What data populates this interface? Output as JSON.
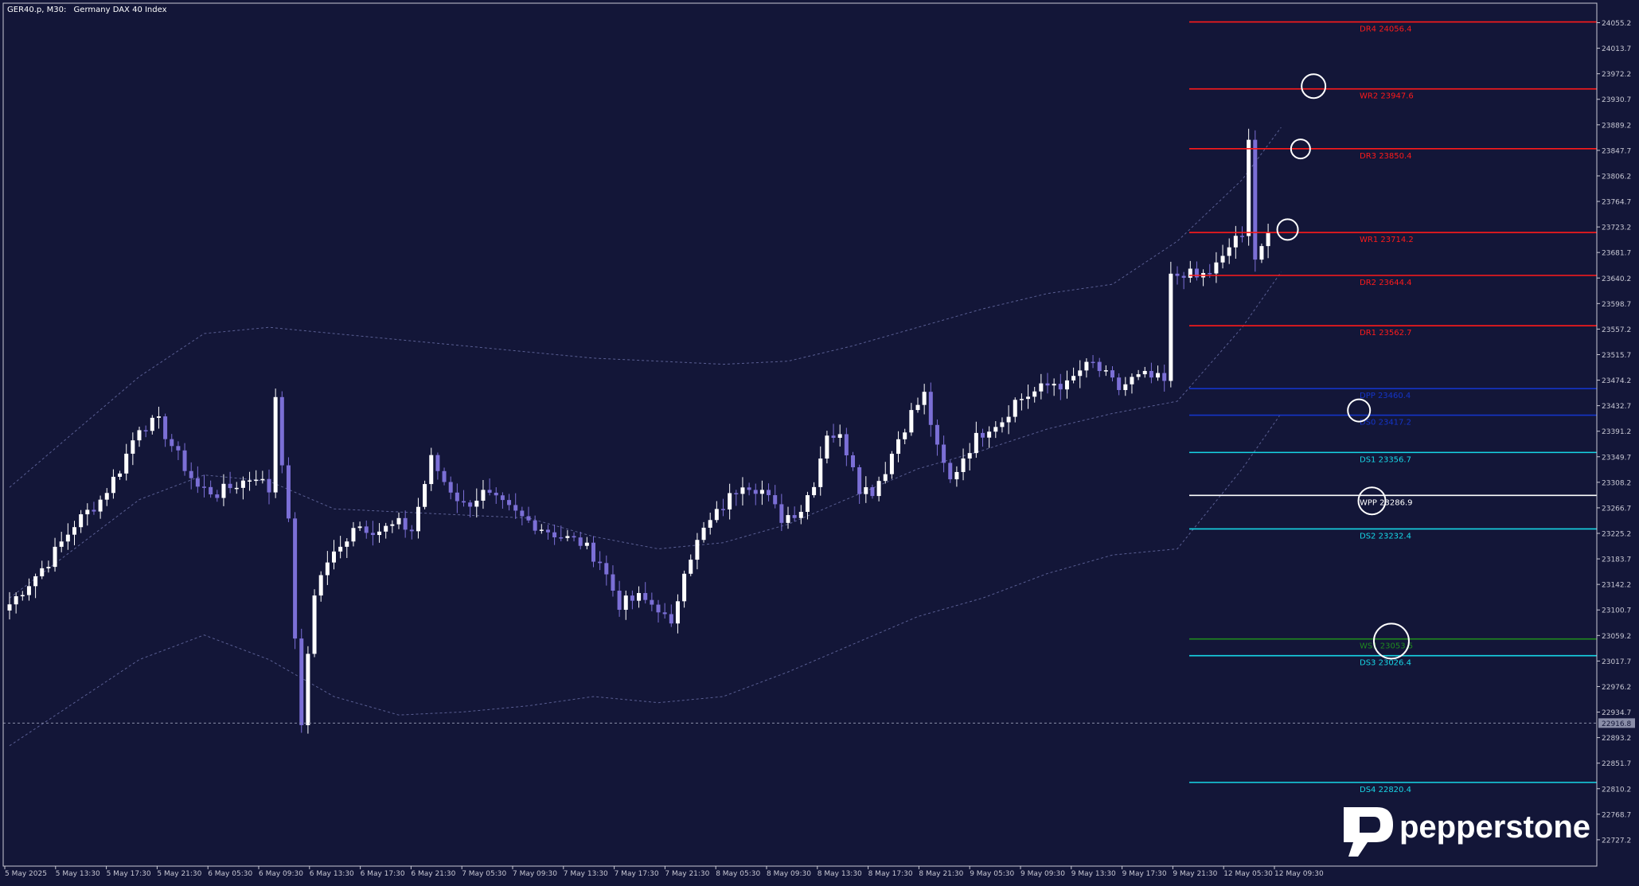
{
  "header": {
    "symbol": "GER40.p, M30:",
    "description": "Germany DAX 40 Index"
  },
  "logo": {
    "text": "pepperstone"
  },
  "colors": {
    "background": "#131638",
    "frame": "#c8c8d4",
    "bull_candle": "#ffffff",
    "bear_candle": "#7b6fd6",
    "band": "#5a5f93",
    "resistance": "#ff1a1a",
    "pivot": "#ffffff",
    "support": "#17d6e6",
    "weekly_support": "#1f8a1f",
    "dark_level": "#1434c8"
  },
  "chart_data": {
    "type": "candlestick",
    "title": "GER40.p, M30: Germany DAX 40 Index",
    "ylim": [
      22705,
      24085
    ],
    "y_ticks": [
      "24055.2",
      "24013.7",
      "23972.2",
      "23930.7",
      "23889.2",
      "23847.7",
      "23806.2",
      "23764.7",
      "23723.2",
      "23681.7",
      "23640.2",
      "23598.7",
      "23557.2",
      "23515.7",
      "23474.2",
      "23432.7",
      "23391.2",
      "23349.7",
      "23308.2",
      "23266.7",
      "23225.2",
      "23183.7",
      "23142.2",
      "23100.7",
      "23059.2",
      "23017.7",
      "22976.2",
      "22934.7",
      "22893.2",
      "22851.7",
      "22810.2",
      "22768.7",
      "22727.2"
    ],
    "x_ticks": [
      "5 May 2025",
      "5 May 13:30",
      "5 May 17:30",
      "5 May 21:30",
      "6 May 05:30",
      "6 May 09:30",
      "6 May 13:30",
      "6 May 17:30",
      "6 May 21:30",
      "7 May 05:30",
      "7 May 09:30",
      "7 May 13:30",
      "7 May 17:30",
      "7 May 21:30",
      "8 May 05:30",
      "8 May 09:30",
      "8 May 13:30",
      "8 May 17:30",
      "8 May 21:30",
      "9 May 05:30",
      "9 May 09:30",
      "9 May 13:30",
      "9 May 17:30",
      "9 May 21:30",
      "12 May 05:30",
      "12 May 09:30"
    ],
    "current_price": "22916.8",
    "levels": [
      {
        "label": "DR4 24056.4",
        "value": 24056.4,
        "role": "resistance"
      },
      {
        "label": "WR2 23947.6",
        "value": 23947.6,
        "role": "resistance"
      },
      {
        "label": "DR3 23850.4",
        "value": 23850.4,
        "role": "resistance"
      },
      {
        "label": "WR1 23714.2",
        "value": 23714.2,
        "role": "resistance"
      },
      {
        "label": "DR2 23644.4",
        "value": 23644.4,
        "role": "resistance"
      },
      {
        "label": "DR1 23562.7",
        "value": 23562.7,
        "role": "resistance"
      },
      {
        "label": "DPP 23460.4",
        "value": 23460.4,
        "role": "dark"
      },
      {
        "label": "DS0 23417.2",
        "value": 23417.2,
        "role": "dark"
      },
      {
        "label": "DS1 23356.7",
        "value": 23356.7,
        "role": "support"
      },
      {
        "label": "WPP 23286.9",
        "value": 23286.9,
        "role": "pivot"
      },
      {
        "label": "DS2 23232.4",
        "value": 23232.4,
        "role": "support"
      },
      {
        "label": "WS1 23053.5",
        "value": 23053.5,
        "role": "weekly_support"
      },
      {
        "label": "DS3 23026.4",
        "value": 23026.4,
        "role": "support"
      },
      {
        "label": "DS4 22820.4",
        "value": 22820.4,
        "role": "support"
      }
    ],
    "markers": [
      {
        "x_index": 189,
        "value": 23952
      },
      {
        "x_index": 187,
        "value": 23850
      },
      {
        "x_index": 185,
        "value": 23719
      },
      {
        "x_index": 196,
        "value": 23425
      },
      {
        "x_index": 198,
        "value": 23278
      },
      {
        "x_index": 201,
        "value": 23050
      }
    ],
    "series": [
      {
        "name": "",
        "anchors": [
          [
            0,
            23110
          ],
          [
            6,
            23180
          ],
          [
            10,
            23240
          ],
          [
            14,
            23280
          ],
          [
            17,
            23330
          ],
          [
            20,
            23400
          ],
          [
            23,
            23405
          ],
          [
            26,
            23350
          ],
          [
            29,
            23300
          ],
          [
            32,
            23290
          ],
          [
            35,
            23305
          ],
          [
            38,
            23320
          ],
          [
            40,
            23295
          ],
          [
            41,
            23450
          ],
          [
            43,
            23240
          ],
          [
            44,
            23060
          ],
          [
            45,
            22905
          ],
          [
            46,
            23030
          ],
          [
            47,
            23130
          ],
          [
            49,
            23180
          ],
          [
            51,
            23200
          ],
          [
            53,
            23240
          ],
          [
            55,
            23235
          ],
          [
            57,
            23230
          ],
          [
            60,
            23240
          ],
          [
            62,
            23230
          ],
          [
            65,
            23345
          ],
          [
            67,
            23310
          ],
          [
            70,
            23270
          ],
          [
            73,
            23290
          ],
          [
            76,
            23270
          ],
          [
            79,
            23250
          ],
          [
            82,
            23235
          ],
          [
            85,
            23220
          ],
          [
            88,
            23210
          ],
          [
            91,
            23180
          ],
          [
            94,
            23110
          ],
          [
            97,
            23120
          ],
          [
            100,
            23105
          ],
          [
            102,
            23070
          ],
          [
            104,
            23170
          ],
          [
            107,
            23230
          ],
          [
            110,
            23270
          ],
          [
            113,
            23310
          ],
          [
            116,
            23295
          ],
          [
            119,
            23250
          ],
          [
            122,
            23265
          ],
          [
            124,
            23310
          ],
          [
            126,
            23390
          ],
          [
            128,
            23380
          ],
          [
            130,
            23340
          ],
          [
            131,
            23300
          ],
          [
            133,
            23295
          ],
          [
            135,
            23330
          ],
          [
            137,
            23380
          ],
          [
            139,
            23420
          ],
          [
            141,
            23450
          ],
          [
            143,
            23360
          ],
          [
            145,
            23310
          ],
          [
            147,
            23350
          ],
          [
            149,
            23380
          ],
          [
            151,
            23400
          ],
          [
            153,
            23410
          ],
          [
            155,
            23440
          ],
          [
            157,
            23450
          ],
          [
            159,
            23460
          ],
          [
            161,
            23470
          ],
          [
            163,
            23465
          ],
          [
            165,
            23490
          ],
          [
            167,
            23500
          ],
          [
            169,
            23480
          ],
          [
            171,
            23460
          ],
          [
            173,
            23475
          ],
          [
            175,
            23480
          ],
          [
            177,
            23475
          ],
          [
            178,
            23470
          ],
          [
            179,
            23640
          ],
          [
            181,
            23650
          ],
          [
            183,
            23640
          ],
          [
            185,
            23650
          ],
          [
            187,
            23670
          ],
          [
            189,
            23710
          ],
          [
            190,
            23700
          ],
          [
            191,
            23860
          ],
          [
            192,
            23680
          ],
          [
            193,
            23695
          ],
          [
            194,
            23715
          ]
        ]
      }
    ],
    "bands": {
      "upper": [
        [
          0,
          23300
        ],
        [
          20,
          23480
        ],
        [
          30,
          23550
        ],
        [
          40,
          23560
        ],
        [
          50,
          23550
        ],
        [
          60,
          23540
        ],
        [
          70,
          23530
        ],
        [
          80,
          23520
        ],
        [
          90,
          23510
        ],
        [
          100,
          23505
        ],
        [
          110,
          23500
        ],
        [
          120,
          23505
        ],
        [
          130,
          23530
        ],
        [
          140,
          23560
        ],
        [
          150,
          23590
        ],
        [
          160,
          23615
        ],
        [
          170,
          23630
        ],
        [
          180,
          23700
        ],
        [
          190,
          23800
        ],
        [
          196,
          23885
        ]
      ],
      "middle": [
        [
          0,
          23120
        ],
        [
          20,
          23280
        ],
        [
          30,
          23320
        ],
        [
          40,
          23310
        ],
        [
          50,
          23265
        ],
        [
          60,
          23260
        ],
        [
          70,
          23255
        ],
        [
          80,
          23250
        ],
        [
          90,
          23220
        ],
        [
          100,
          23200
        ],
        [
          110,
          23210
        ],
        [
          120,
          23240
        ],
        [
          130,
          23285
        ],
        [
          140,
          23330
        ],
        [
          150,
          23360
        ],
        [
          160,
          23395
        ],
        [
          170,
          23420
        ],
        [
          180,
          23440
        ],
        [
          190,
          23560
        ],
        [
          196,
          23650
        ]
      ],
      "lower": [
        [
          0,
          22880
        ],
        [
          20,
          23020
        ],
        [
          30,
          23060
        ],
        [
          40,
          23020
        ],
        [
          50,
          22960
        ],
        [
          60,
          22930
        ],
        [
          70,
          22935
        ],
        [
          80,
          22945
        ],
        [
          90,
          22960
        ],
        [
          100,
          22950
        ],
        [
          110,
          22960
        ],
        [
          120,
          23000
        ],
        [
          130,
          23045
        ],
        [
          140,
          23090
        ],
        [
          150,
          23120
        ],
        [
          160,
          23160
        ],
        [
          170,
          23190
        ],
        [
          180,
          23200
        ],
        [
          190,
          23330
        ],
        [
          196,
          23420
        ]
      ]
    }
  }
}
